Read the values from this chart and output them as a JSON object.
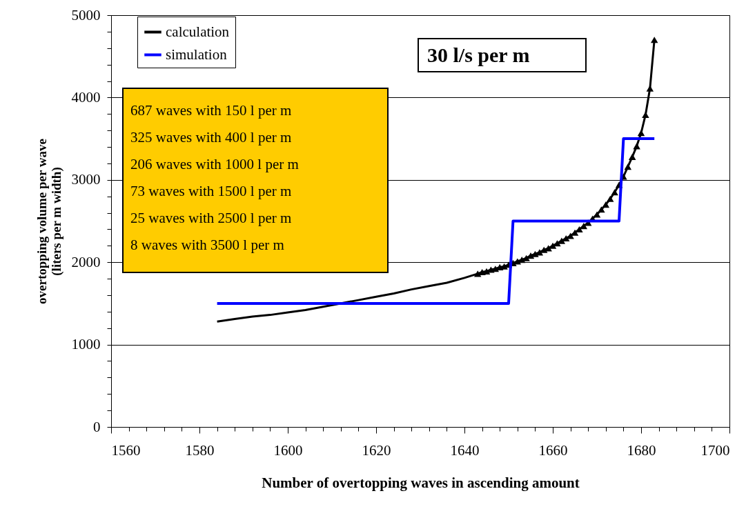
{
  "chart_data": {
    "type": "line",
    "xlabel": "Number of overtopping waves in ascending amount",
    "ylabel": "overtopping volume per wave\n(liters per m width)",
    "xlim": [
      1560,
      1700
    ],
    "xticks": [
      1560,
      {
        "value": 1564,
        "label": null
      },
      {
        "value": 1568,
        "label": null
      },
      {
        "value": 1572,
        "label": null
      },
      {
        "value": 1576,
        "label": null
      },
      1580,
      {
        "value": 1584,
        "label": null
      },
      {
        "value": 1588,
        "label": null
      },
      {
        "value": 1592,
        "label": null
      },
      {
        "value": 1596,
        "label": null
      },
      1600,
      {
        "value": 1604,
        "label": null
      },
      {
        "value": 1608,
        "label": null
      },
      {
        "value": 1612,
        "label": null
      },
      {
        "value": 1616,
        "label": null
      },
      1620,
      {
        "value": 1624,
        "label": null
      },
      {
        "value": 1628,
        "label": null
      },
      {
        "value": 1632,
        "label": null
      },
      {
        "value": 1636,
        "label": null
      },
      1640,
      {
        "value": 1644,
        "label": null
      },
      {
        "value": 1648,
        "label": null
      },
      {
        "value": 1652,
        "label": null
      },
      {
        "value": 1656,
        "label": null
      },
      1660,
      {
        "value": 1664,
        "label": null
      },
      {
        "value": 1668,
        "label": null
      },
      {
        "value": 1672,
        "label": null
      },
      {
        "value": 1676,
        "label": null
      },
      1680,
      {
        "value": 1684,
        "label": null
      },
      {
        "value": 1688,
        "label": null
      },
      {
        "value": 1692,
        "label": null
      },
      {
        "value": 1696,
        "label": null
      },
      1700
    ],
    "ylim": [
      0,
      5000
    ],
    "yticks": [
      0,
      {
        "value": 200,
        "label": null
      },
      {
        "value": 400,
        "label": null
      },
      {
        "value": 600,
        "label": null
      },
      {
        "value": 800,
        "label": null
      },
      1000,
      {
        "value": 1200,
        "label": null
      },
      {
        "value": 1400,
        "label": null
      },
      {
        "value": 1600,
        "label": null
      },
      {
        "value": 1800,
        "label": null
      },
      2000,
      {
        "value": 2200,
        "label": null
      },
      {
        "value": 2400,
        "label": null
      },
      {
        "value": 2600,
        "label": null
      },
      {
        "value": 2800,
        "label": null
      },
      3000,
      {
        "value": 3200,
        "label": null
      },
      {
        "value": 3400,
        "label": null
      },
      {
        "value": 3600,
        "label": null
      },
      {
        "value": 3800,
        "label": null
      },
      4000,
      {
        "value": 4200,
        "label": null
      },
      {
        "value": 4400,
        "label": null
      },
      {
        "value": 4600,
        "label": null
      },
      {
        "value": 4800,
        "label": null
      },
      5000
    ],
    "grid": "y",
    "legend": "top left",
    "marker": "triangle",
    "line_style": "solid",
    "series": [
      {
        "color": "#000000",
        "marker": "none",
        "x": [
          1584,
          1588,
          1592,
          1596,
          1600,
          1604,
          1608,
          1616,
          1620,
          1624,
          1628,
          1632,
          1636,
          1640,
          1643
        ],
        "values": [
          1280,
          1310,
          1340,
          1360,
          1390,
          1420,
          1460,
          1540,
          1580,
          1620,
          1670,
          1710,
          1750,
          1810,
          1860
        ]
      },
      {
        "name": "calculation",
        "color": "#000000",
        "x": [
          1643,
          1644,
          1645,
          1646,
          1647,
          1648,
          1649,
          1650,
          1651,
          1652,
          1653,
          1654,
          1655,
          1656,
          1657,
          1658,
          1659,
          1660,
          1661,
          1662,
          1663,
          1664,
          1665,
          1666,
          1667,
          1668,
          1669,
          1670,
          1671,
          1672,
          1673,
          1674,
          1675,
          1676,
          1677,
          1678,
          1679,
          1680,
          1681,
          1682,
          1683
        ],
        "values": [
          1860,
          1880,
          1890,
          1910,
          1920,
          1940,
          1950,
          1970,
          1990,
          2010,
          2030,
          2050,
          2080,
          2100,
          2120,
          2150,
          2170,
          2200,
          2230,
          2260,
          2290,
          2320,
          2360,
          2400,
          2440,
          2480,
          2530,
          2580,
          2640,
          2700,
          2770,
          2850,
          2940,
          3040,
          3160,
          3280,
          3410,
          3570,
          3790,
          4110,
          4700
        ]
      },
      {
        "name": "simulation",
        "color": "#0000ff",
        "marker": "none",
        "x": [
          1584,
          1650,
          1651,
          1675,
          1676,
          1683
        ],
        "values": [
          1500,
          1500,
          2500,
          2500,
          3500,
          3500
        ]
      }
    ],
    "annotations": [
      "30 l/s per m",
      "687 waves with 150 l per m",
      "325 waves with 400 l per m",
      "206 waves with 1000 l per m",
      "73 waves with 1500 l per m",
      "25 waves with 2500 l per m",
      "8 waves with 3500 l per m"
    ]
  }
}
